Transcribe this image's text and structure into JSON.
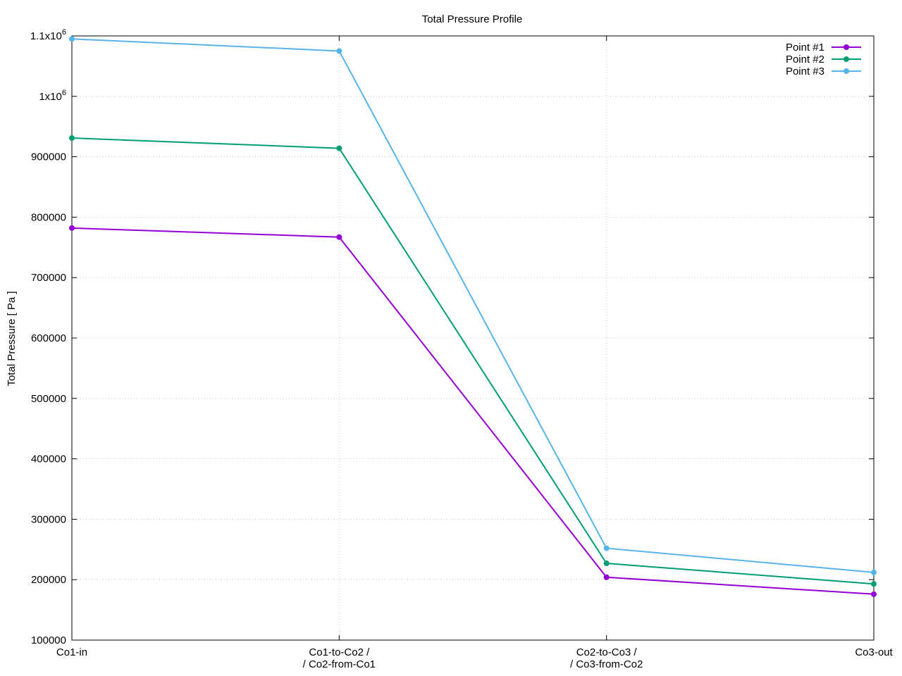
{
  "chart_data": {
    "type": "line",
    "title": "Total Pressure Profile",
    "xlabel": "",
    "ylabel": "Total Pressure [ Pa ]",
    "categories": [
      [
        "Co1-in"
      ],
      [
        "Co1-to-Co2 /",
        "/ Co2-from-Co1"
      ],
      [
        "Co2-to-Co3 /",
        "/ Co3-from-Co2"
      ],
      [
        "Co3-out"
      ]
    ],
    "ylim": [
      100000,
      1100000
    ],
    "yticks": [
      {
        "value": 100000,
        "label": "100000"
      },
      {
        "value": 200000,
        "label": "200000"
      },
      {
        "value": 300000,
        "label": "300000"
      },
      {
        "value": 400000,
        "label": "400000"
      },
      {
        "value": 500000,
        "label": "500000"
      },
      {
        "value": 600000,
        "label": "600000"
      },
      {
        "value": 700000,
        "label": "700000"
      },
      {
        "value": 800000,
        "label": "800000"
      },
      {
        "value": 900000,
        "label": "900000"
      },
      {
        "value": 1000000,
        "label": "1x10",
        "sup": "6"
      },
      {
        "value": 1100000,
        "label": "1.1x10",
        "sup": "6"
      }
    ],
    "grid": true,
    "legend_position": "top-right",
    "series": [
      {
        "name": "Point #1",
        "color": "#9400d3",
        "values": [
          782000,
          767000,
          204000,
          176000
        ]
      },
      {
        "name": "Point #2",
        "color": "#009e73",
        "values": [
          931000,
          914000,
          227000,
          193000
        ]
      },
      {
        "name": "Point #3",
        "color": "#56b4e9",
        "values": [
          1095000,
          1075000,
          252000,
          212000
        ]
      }
    ]
  }
}
